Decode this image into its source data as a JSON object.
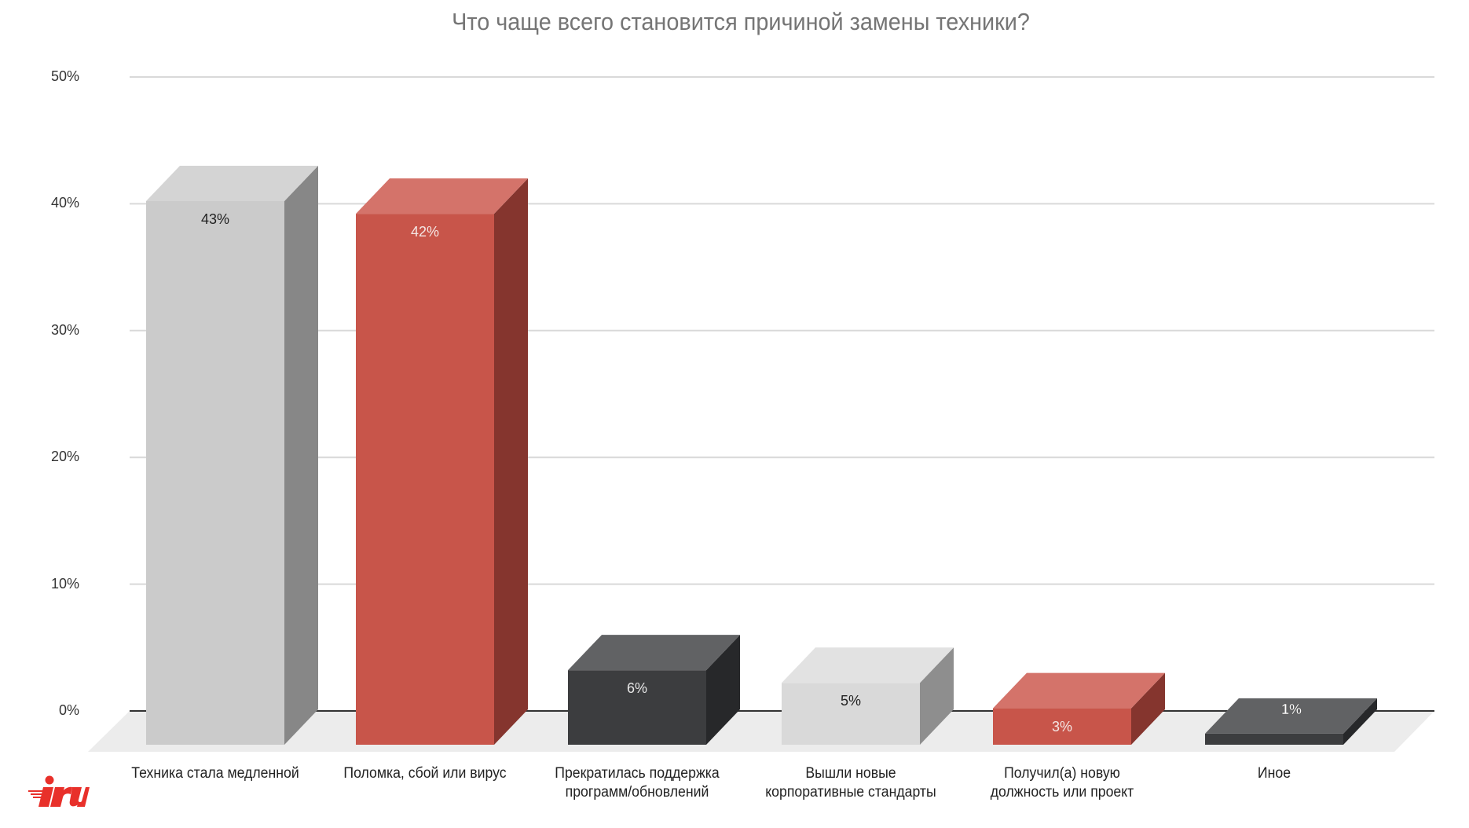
{
  "title": "Что чаще всего становится причиной замены техники?",
  "chart_data": {
    "type": "bar",
    "style": "3d-column",
    "title": "Что чаще всего становится причиной замены техники?",
    "xlabel": "",
    "ylabel": "",
    "ylim": [
      0,
      50
    ],
    "yticks": [
      "0%",
      "10%",
      "20%",
      "30%",
      "40%",
      "50%"
    ],
    "grid": true,
    "legend": "none",
    "categories": [
      "Техника стала медленной",
      "Поломка, сбой или вирус",
      "Прекратилась поддержка программ/обновлений",
      "Вышли новые корпоративные стандарты",
      "Получил(а) новую должность или проект",
      "Иное"
    ],
    "values": [
      43,
      42,
      6,
      5,
      3,
      1
    ],
    "data_labels": [
      "43%",
      "42%",
      "6%",
      "5%",
      "3%",
      "1%"
    ]
  },
  "bars": [
    {
      "label_lines": [
        "Техника стала медленной"
      ],
      "value_label": "43%",
      "front": "#cbcbcb",
      "side": "#878787",
      "top": "#d4d4d4",
      "text": "#222222"
    },
    {
      "label_lines": [
        "Поломка, сбой или вирус"
      ],
      "value_label": "42%",
      "front": "#c8554a",
      "side": "#85352e",
      "top": "#d4736a",
      "text": "#f4e6e4"
    },
    {
      "label_lines": [
        "Прекратилась поддержка",
        "программ/обновлений"
      ],
      "value_label": "6%",
      "front": "#3c3d3f",
      "side": "#27282a",
      "top": "#616264",
      "text": "#e6e6e6"
    },
    {
      "label_lines": [
        "Вышли новые",
        "корпоративные стандарты"
      ],
      "value_label": "5%",
      "front": "#d9d9d9",
      "side": "#8e8e8e",
      "top": "#e2e2e2",
      "text": "#222222"
    },
    {
      "label_lines": [
        "Получил(а) новую",
        "должность или проект"
      ],
      "value_label": "3%",
      "front": "#c8554a",
      "side": "#85352e",
      "top": "#d4736a",
      "text": "#f4e6e4"
    },
    {
      "label_lines": [
        "Иное"
      ],
      "value_label": "1%",
      "front": "#3c3d3f",
      "side": "#27282a",
      "top": "#616264",
      "text": "#ffffff"
    }
  ],
  "logo": {
    "text": "iru",
    "color": "#e8302a"
  },
  "colors": {
    "grid": "#d9d9d9",
    "baseline": "#333333",
    "floor": "#ececec",
    "title": "#757575",
    "axis_text": "#333333"
  }
}
